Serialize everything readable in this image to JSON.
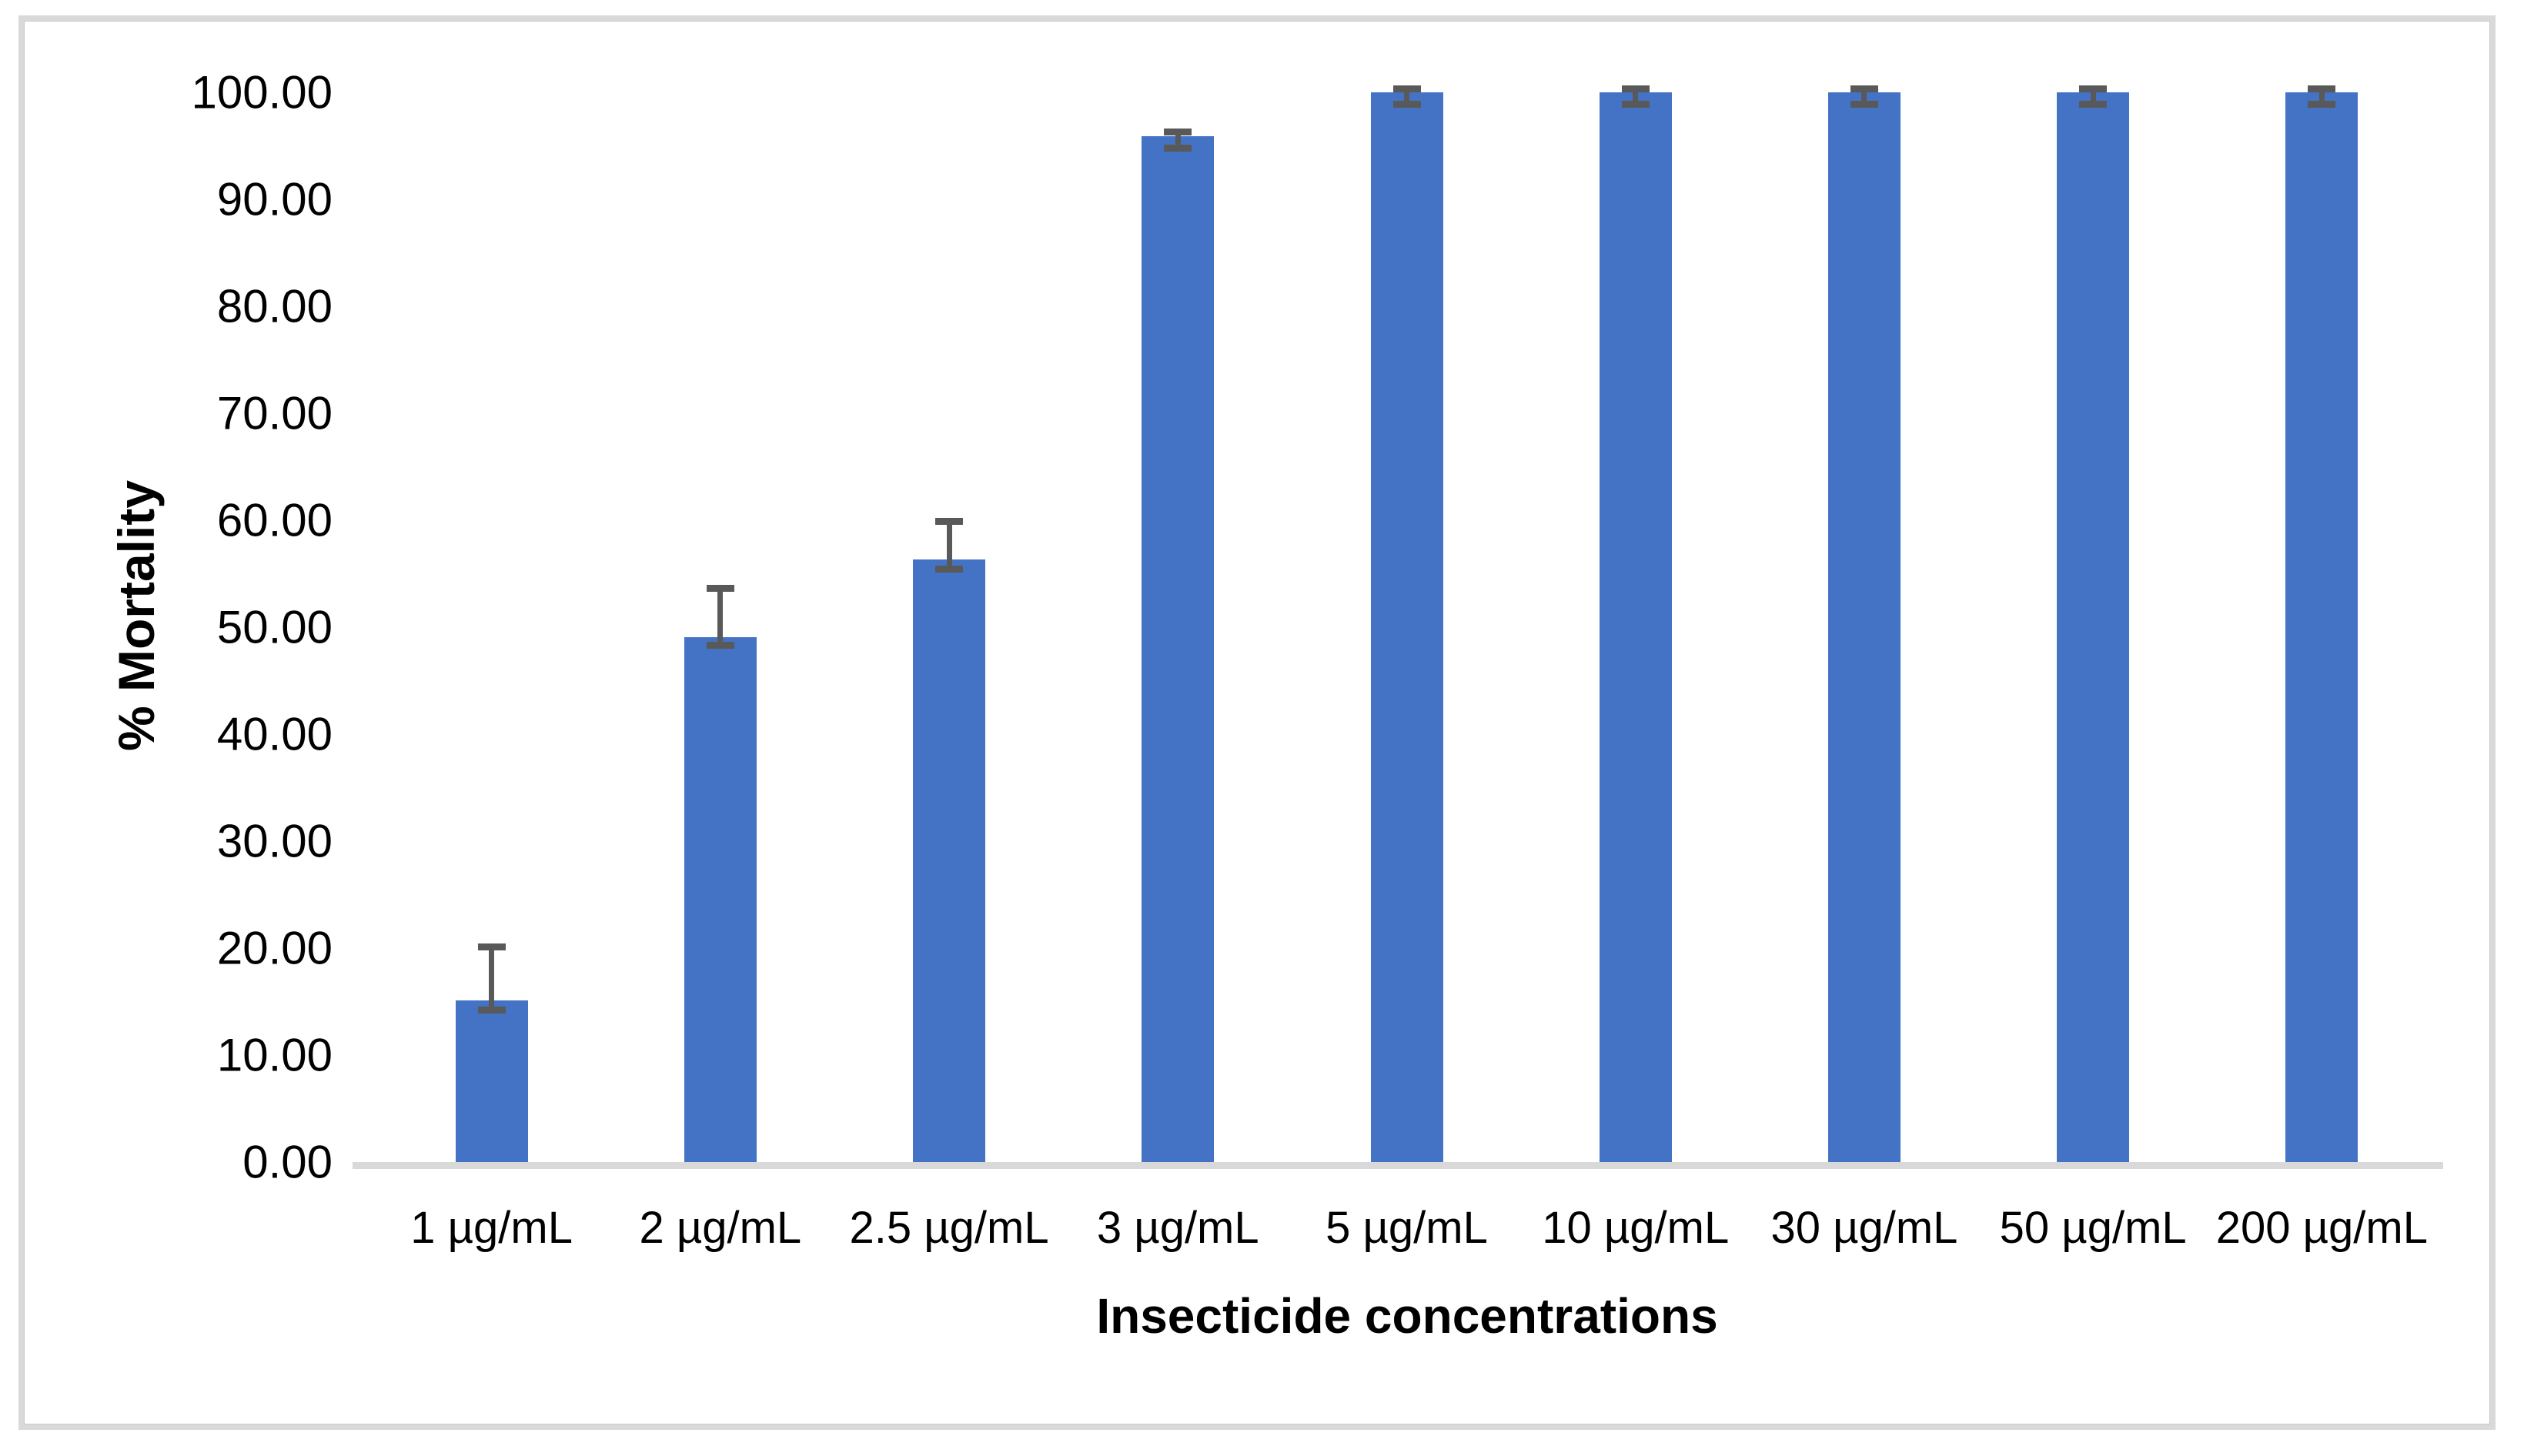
{
  "chart_data": {
    "type": "bar",
    "title": "",
    "xlabel": "Insecticide concentrations",
    "ylabel": "% Mortality",
    "categories": [
      "1 µg/mL",
      "2 µg/mL",
      "2.5 µg/mL",
      "3 µg/mL",
      "5 µg/mL",
      "10 µg/mL",
      "30 µg/mL",
      "50 µg/mL",
      "200 µg/mL"
    ],
    "series": [
      {
        "name": "% Mortality",
        "values": [
          15.1,
          49.1,
          56.3,
          95.9,
          100.0,
          100.0,
          100.0,
          100.0,
          100.0
        ],
        "error_up": [
          5.0,
          4.5,
          3.6,
          0.4,
          0.3,
          0.3,
          0.3,
          0.3,
          0.3
        ],
        "error_down": [
          0.9,
          0.8,
          0.9,
          1.1,
          1.1,
          1.1,
          1.1,
          1.1,
          1.1
        ]
      }
    ],
    "ylim": [
      0,
      100
    ],
    "ytick_step": 10,
    "yticks": [
      "0.00",
      "10.00",
      "20.00",
      "30.00",
      "40.00",
      "50.00",
      "60.00",
      "70.00",
      "80.00",
      "90.00",
      "100.00"
    ],
    "grid": "off",
    "legend": "none",
    "error_bars": true,
    "colors": {
      "bar": "#4472c4",
      "error_bar": "#595959",
      "axis_line": "#d9d9d9",
      "frame_border": "#d9d9d9",
      "background": "#ffffff",
      "text": "#000000"
    }
  }
}
